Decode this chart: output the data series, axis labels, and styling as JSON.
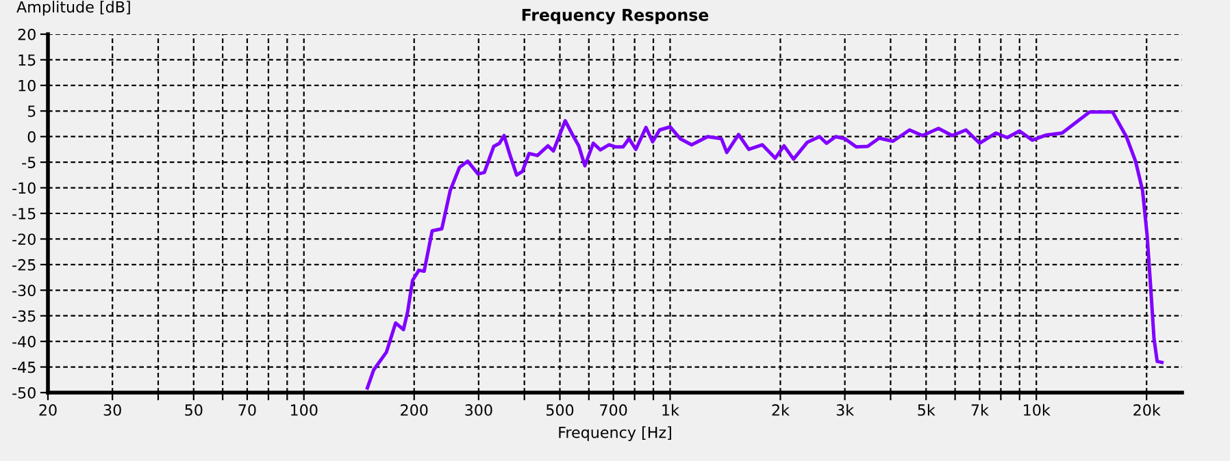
{
  "chart_data": {
    "type": "line",
    "title": "Frequency Response",
    "xlabel": "Frequency [Hz]",
    "ylabel": "Amplitude [dB]",
    "log": "x",
    "grid": true,
    "line_style": "solid",
    "xlim": [
      20,
      25000
    ],
    "ylim": [
      -50,
      20
    ],
    "xticks": [
      20,
      30,
      {
        "value": 40,
        "label": null
      },
      50,
      {
        "value": 60,
        "label": null
      },
      70,
      {
        "value": 80,
        "label": null
      },
      {
        "value": 90,
        "label": null
      },
      100,
      200,
      300,
      {
        "value": 400,
        "label": null
      },
      500,
      {
        "value": 600,
        "label": null
      },
      700,
      {
        "value": 800,
        "label": null
      },
      {
        "value": 900,
        "label": null
      },
      {
        "value": 1000,
        "label": "1k"
      },
      {
        "value": 2000,
        "label": "2k"
      },
      {
        "value": 3000,
        "label": "3k"
      },
      {
        "value": 4000,
        "label": null
      },
      {
        "value": 5000,
        "label": "5k"
      },
      {
        "value": 6000,
        "label": null
      },
      {
        "value": 7000,
        "label": "7k"
      },
      {
        "value": 8000,
        "label": null
      },
      {
        "value": 9000,
        "label": null
      },
      {
        "value": 10000,
        "label": "10k"
      },
      {
        "value": 20000,
        "label": "20k"
      }
    ],
    "yticks": [
      -50,
      -45,
      -40,
      -35,
      -30,
      -25,
      -20,
      -15,
      -10,
      -5,
      0,
      5,
      10,
      15,
      20
    ],
    "series": [
      {
        "color": "#8000ff",
        "x": [
          149,
          155,
          168,
          178,
          187,
          192,
          198,
          206,
          213,
          224,
          238,
          251,
          266,
          280,
          299,
          311,
          330,
          342,
          352,
          365,
          381,
          395,
          412,
          434,
          464,
          480,
          517,
          541,
          563,
          585,
          617,
          645,
          681,
          708,
          744,
          772,
          806,
          859,
          896,
          936,
          1000,
          1065,
          1145,
          1266,
          1380,
          1428,
          1538,
          1640,
          1786,
          1937,
          2047,
          2173,
          2370,
          2559,
          2673,
          2832,
          3000,
          3223,
          3464,
          3722,
          4059,
          4506,
          4887,
          5405,
          5890,
          6426,
          7004,
          7760,
          8328,
          8996,
          9753,
          10630,
          11760,
          13010,
          13980,
          16150,
          17610,
          18660,
          19500,
          20070,
          20540,
          20960,
          21380,
          22020
        ],
        "values": [
          -49.1,
          -45.6,
          -42.1,
          -36.4,
          -37.7,
          -34.2,
          -28.1,
          -26.1,
          -26.3,
          -18.4,
          -18.0,
          -10.5,
          -6.0,
          -4.8,
          -7.3,
          -7.0,
          -1.9,
          -1.3,
          0.2,
          -3.5,
          -7.5,
          -6.8,
          -3.3,
          -3.7,
          -1.8,
          -2.8,
          3.1,
          0.4,
          -1.8,
          -5.7,
          -1.3,
          -2.6,
          -1.6,
          -2.0,
          -2.0,
          -0.4,
          -2.5,
          1.8,
          -1.0,
          1.3,
          1.9,
          -0.4,
          -1.6,
          0.0,
          -0.4,
          -3.1,
          0.4,
          -2.5,
          -1.6,
          -4.2,
          -1.8,
          -4.4,
          -1.1,
          0.0,
          -1.3,
          0.0,
          -0.4,
          -2.0,
          -1.9,
          -0.3,
          -0.9,
          1.3,
          0.2,
          1.6,
          0.2,
          1.3,
          -1.3,
          0.7,
          -0.2,
          1.1,
          -0.7,
          0.3,
          0.7,
          3.1,
          4.8,
          4.8,
          0.0,
          -4.8,
          -10.5,
          -19.3,
          -29.8,
          -39.5,
          -43.9,
          -44.1
        ]
      }
    ]
  }
}
